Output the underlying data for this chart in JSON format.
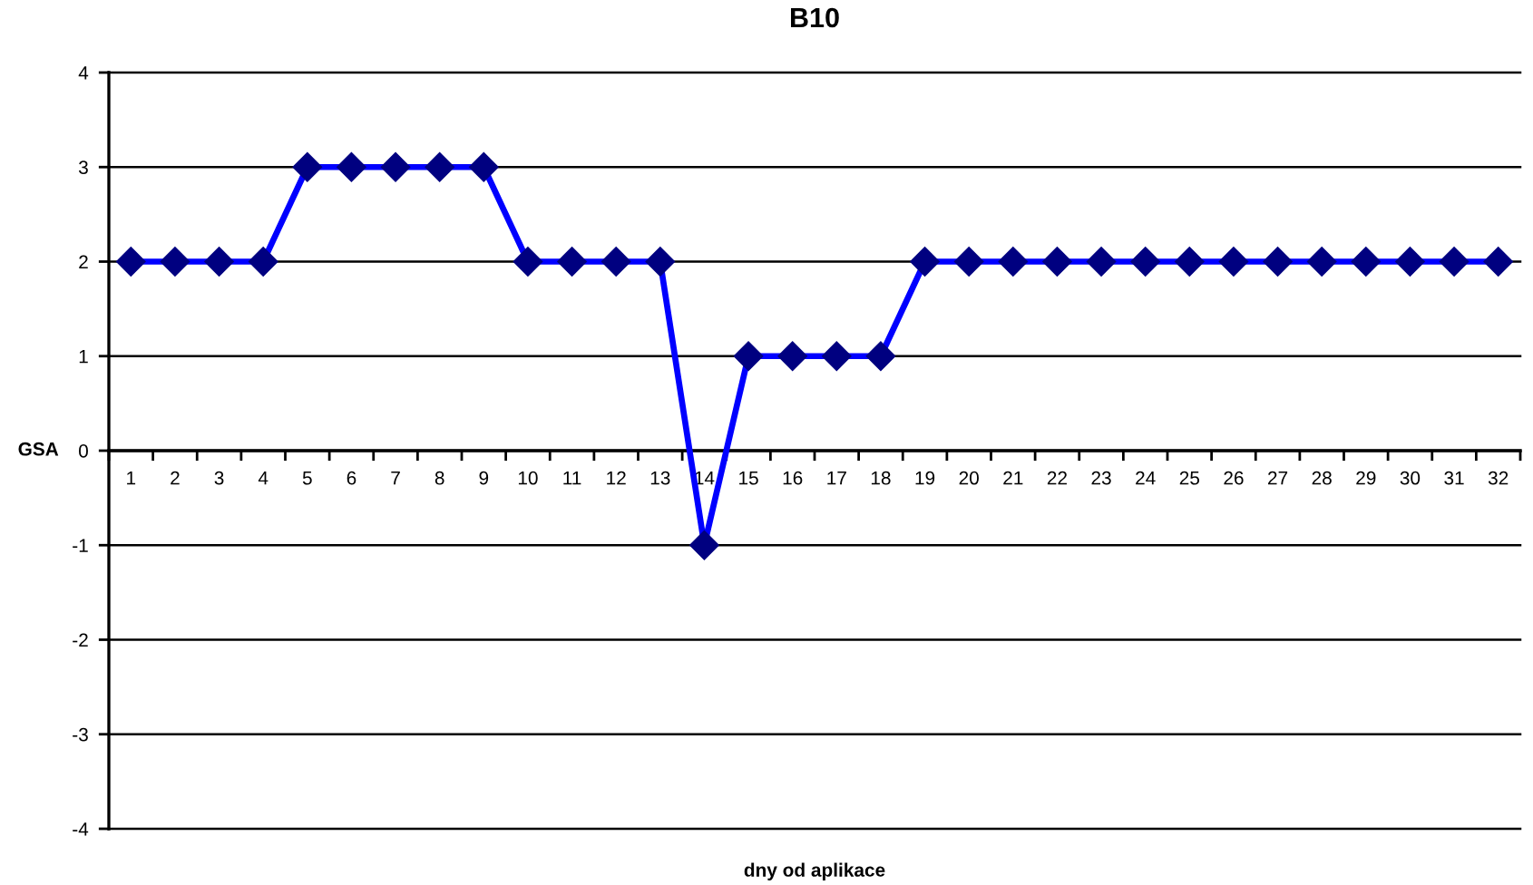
{
  "chart_data": {
    "type": "line",
    "title": "B10",
    "xlabel": "dny od aplikace",
    "ylabel": "GSA",
    "categories": [
      "1",
      "2",
      "3",
      "4",
      "5",
      "6",
      "7",
      "8",
      "9",
      "10",
      "11",
      "12",
      "13",
      "14",
      "15",
      "16",
      "17",
      "18",
      "19",
      "20",
      "21",
      "22",
      "23",
      "24",
      "25",
      "26",
      "27",
      "28",
      "29",
      "30",
      "31",
      "32"
    ],
    "series": [
      {
        "color": "#0000ff",
        "colors": [
          "#000080",
          "#000080",
          "#000080",
          "#000080",
          "#000080",
          "#000080",
          "#000080",
          "#000080",
          "#000080",
          "#000080",
          "#000080",
          "#000080",
          "#000080",
          "#000080",
          "#000080",
          "#000080",
          "#000080",
          "#000080",
          "#000080",
          "#000080",
          "#000080",
          "#000080",
          "#000080",
          "#000080",
          "#000080",
          "#000080",
          "#000080",
          "#000080",
          "#000080",
          "#000080",
          "#000080",
          "#000080"
        ],
        "values": [
          2,
          2,
          2,
          2,
          3,
          3,
          3,
          3,
          3,
          2,
          2,
          2,
          2,
          -1,
          1,
          1,
          1,
          1,
          2,
          2,
          2,
          2,
          2,
          2,
          2,
          2,
          2,
          2,
          2,
          2,
          2,
          2
        ]
      }
    ],
    "ylim": [
      -4,
      4
    ],
    "yticks": [
      -4,
      -3,
      -2,
      -1,
      0,
      1,
      2,
      3,
      4
    ],
    "grid": "y",
    "marker": "diamond",
    "line_style": "solid"
  }
}
